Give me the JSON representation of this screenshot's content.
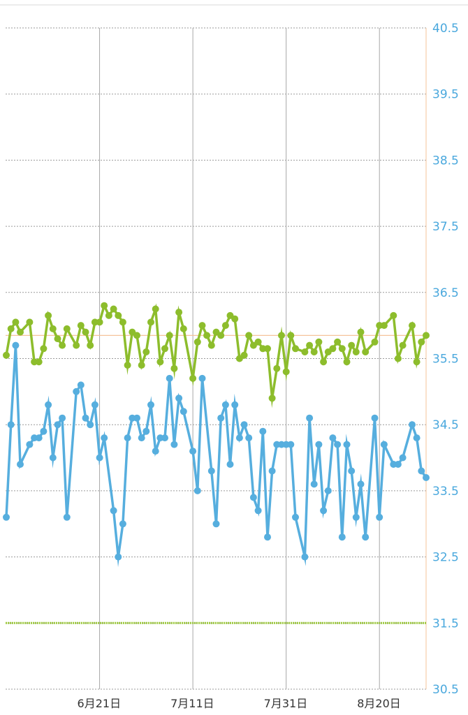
{
  "chart_data": {
    "type": "line",
    "ylim": [
      30.5,
      40.5
    ],
    "y_ticks": [
      "40.5",
      "39.5",
      "38.5",
      "37.5",
      "36.5",
      "35.5",
      "34.5",
      "33.5",
      "32.5",
      "31.5",
      "30.5"
    ],
    "x_ticks": [
      {
        "label": "6月21日",
        "day": 20
      },
      {
        "label": "7月11日",
        "day": 40
      },
      {
        "label": "7月31日",
        "day": 60
      },
      {
        "label": "8月20日",
        "day": 80
      }
    ],
    "xlim_days": [
      0,
      90
    ],
    "grid": true,
    "reference_lines": [
      {
        "value": 35.85,
        "color": "#f6c39a",
        "style": "solid"
      },
      {
        "value": 31.5,
        "color": "#9cc83c",
        "style": "dotted"
      }
    ],
    "series": [
      {
        "color": "#8dbd2c",
        "points": [
          [
            0,
            35.55
          ],
          [
            1,
            35.95
          ],
          [
            2,
            36.05
          ],
          [
            3,
            35.9
          ],
          [
            5,
            36.05
          ],
          [
            6,
            35.45
          ],
          [
            7,
            35.45
          ],
          [
            8,
            35.65
          ],
          [
            9,
            36.15
          ],
          [
            10,
            35.95
          ],
          [
            11,
            35.8
          ],
          [
            12,
            35.7
          ],
          [
            13,
            35.95
          ],
          [
            15,
            35.7
          ],
          [
            16,
            36.0
          ],
          [
            17,
            35.9
          ],
          [
            18,
            35.7
          ],
          [
            19,
            36.05
          ],
          [
            20,
            36.05
          ],
          [
            21,
            36.3
          ],
          [
            22,
            36.15
          ],
          [
            23,
            36.25
          ],
          [
            24,
            36.15
          ],
          [
            25,
            36.05
          ],
          [
            26,
            35.4
          ],
          [
            27,
            35.9
          ],
          [
            28,
            35.85
          ],
          [
            29,
            35.4
          ],
          [
            30,
            35.6
          ],
          [
            31,
            36.05
          ],
          [
            32,
            36.25
          ],
          [
            33,
            35.45
          ],
          [
            34,
            35.65
          ],
          [
            35,
            35.85
          ],
          [
            36,
            35.35
          ],
          [
            37,
            36.2
          ],
          [
            38,
            35.95
          ],
          [
            40,
            35.2
          ],
          [
            41,
            35.75
          ],
          [
            42,
            36.0
          ],
          [
            43,
            35.85
          ],
          [
            44,
            35.7
          ],
          [
            45,
            35.9
          ],
          [
            46,
            35.85
          ],
          [
            47,
            36.0
          ],
          [
            48,
            36.15
          ],
          [
            49,
            36.1
          ],
          [
            50,
            35.5
          ],
          [
            51,
            35.55
          ],
          [
            52,
            35.85
          ],
          [
            53,
            35.7
          ],
          [
            54,
            35.75
          ],
          [
            55,
            35.65
          ],
          [
            56,
            35.65
          ],
          [
            57,
            34.9
          ],
          [
            58,
            35.35
          ],
          [
            59,
            35.85
          ],
          [
            60,
            35.3
          ],
          [
            61,
            35.85
          ],
          [
            62,
            35.65
          ],
          [
            64,
            35.6
          ],
          [
            65,
            35.7
          ],
          [
            66,
            35.6
          ],
          [
            67,
            35.75
          ],
          [
            68,
            35.45
          ],
          [
            69,
            35.6
          ],
          [
            70,
            35.65
          ],
          [
            71,
            35.75
          ],
          [
            72,
            35.65
          ],
          [
            73,
            35.45
          ],
          [
            74,
            35.7
          ],
          [
            75,
            35.6
          ],
          [
            76,
            35.9
          ],
          [
            77,
            35.6
          ],
          [
            79,
            35.75
          ],
          [
            80,
            36.0
          ],
          [
            81,
            36.0
          ],
          [
            83,
            36.15
          ],
          [
            84,
            35.5
          ],
          [
            85,
            35.7
          ],
          [
            87,
            36.0
          ],
          [
            88,
            35.45
          ],
          [
            89,
            35.75
          ],
          [
            90,
            35.85
          ]
        ]
      },
      {
        "color": "#56aede",
        "points": [
          [
            0,
            33.1
          ],
          [
            1,
            34.5
          ],
          [
            2,
            35.7
          ],
          [
            3,
            33.9
          ],
          [
            5,
            34.2
          ],
          [
            6,
            34.3
          ],
          [
            7,
            34.3
          ],
          [
            8,
            34.4
          ],
          [
            9,
            34.8
          ],
          [
            10,
            34.0
          ],
          [
            11,
            34.5
          ],
          [
            12,
            34.6
          ],
          [
            13,
            33.1
          ],
          [
            15,
            35.0
          ],
          [
            16,
            35.1
          ],
          [
            17,
            34.6
          ],
          [
            18,
            34.5
          ],
          [
            19,
            34.8
          ],
          [
            20,
            34.0
          ],
          [
            21,
            34.3
          ],
          [
            23,
            33.2
          ],
          [
            24,
            32.5
          ],
          [
            25,
            33.0
          ],
          [
            26,
            34.3
          ],
          [
            27,
            34.6
          ],
          [
            28,
            34.6
          ],
          [
            29,
            34.3
          ],
          [
            30,
            34.4
          ],
          [
            31,
            34.8
          ],
          [
            32,
            34.1
          ],
          [
            33,
            34.3
          ],
          [
            34,
            34.3
          ],
          [
            35,
            35.2
          ],
          [
            36,
            34.2
          ],
          [
            37,
            34.9
          ],
          [
            38,
            34.7
          ],
          [
            40,
            34.1
          ],
          [
            41,
            33.5
          ],
          [
            42,
            35.2
          ],
          [
            44,
            33.8
          ],
          [
            45,
            33.0
          ],
          [
            46,
            34.6
          ],
          [
            47,
            34.8
          ],
          [
            48,
            33.9
          ],
          [
            49,
            34.8
          ],
          [
            50,
            34.3
          ],
          [
            51,
            34.5
          ],
          [
            52,
            34.3
          ],
          [
            53,
            33.4
          ],
          [
            54,
            33.2
          ],
          [
            55,
            34.4
          ],
          [
            56,
            32.8
          ],
          [
            57,
            33.8
          ],
          [
            58,
            34.2
          ],
          [
            59,
            34.2
          ],
          [
            60,
            34.2
          ],
          [
            61,
            34.2
          ],
          [
            62,
            33.1
          ],
          [
            64,
            32.5
          ],
          [
            65,
            34.6
          ],
          [
            66,
            33.6
          ],
          [
            67,
            34.2
          ],
          [
            68,
            33.2
          ],
          [
            69,
            33.5
          ],
          [
            70,
            34.3
          ],
          [
            71,
            34.2
          ],
          [
            72,
            32.8
          ],
          [
            73,
            34.2
          ],
          [
            74,
            33.8
          ],
          [
            75,
            33.1
          ],
          [
            76,
            33.6
          ],
          [
            77,
            32.8
          ],
          [
            79,
            34.6
          ],
          [
            80,
            33.1
          ],
          [
            81,
            34.2
          ],
          [
            83,
            33.9
          ],
          [
            84,
            33.9
          ],
          [
            85,
            34.0
          ],
          [
            87,
            34.5
          ],
          [
            88,
            34.3
          ],
          [
            89,
            33.8
          ],
          [
            90,
            33.7
          ]
        ]
      }
    ]
  }
}
